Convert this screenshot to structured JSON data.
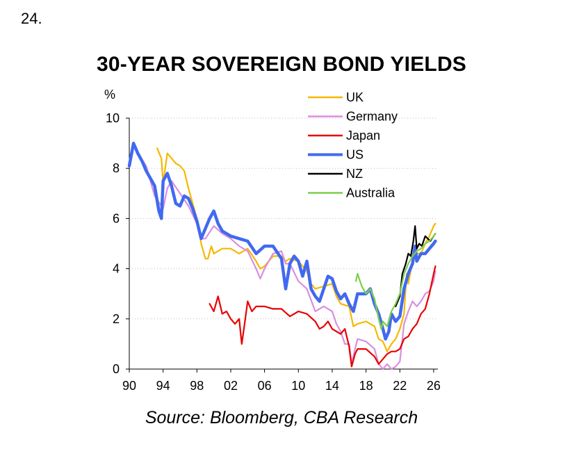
{
  "page_number": "24.",
  "source": "Source:  Bloomberg, CBA Research",
  "colors": {
    "UK": "#F5B800",
    "Germany": "#DA8EE0",
    "Japan": "#E80000",
    "US": "#4169F0",
    "NZ": "#000000",
    "Australia": "#7CCF4A"
  },
  "chart_data": {
    "type": "line",
    "title": "30-YEAR SOVEREIGN BOND YIELDS",
    "ylabel": "%",
    "xlabel": "",
    "xlim": [
      1990,
      2026.5
    ],
    "ylim": [
      0,
      10
    ],
    "x_tick_labels": [
      "90",
      "94",
      "98",
      "02",
      "06",
      "10",
      "14",
      "18",
      "22",
      "26"
    ],
    "x_tick_years": [
      1990,
      1994,
      1998,
      2002,
      2006,
      2010,
      2014,
      2018,
      2022,
      2026
    ],
    "y_tick_labels": [
      "0",
      "2",
      "4",
      "6",
      "8",
      "10"
    ],
    "y_tick_values": [
      0,
      2,
      4,
      6,
      8,
      10
    ],
    "grid": "horizontal dotted",
    "legend_position": "top-right",
    "series": [
      {
        "name": "UK",
        "x": [
          1993.3,
          1993.8,
          1994.0,
          1994.5,
          1995.0,
          1995.5,
          1996.0,
          1996.5,
          1997.0,
          1997.5,
          1998.0,
          1998.5,
          1999.0,
          1999.3,
          1999.7,
          2000.0,
          2001.0,
          2002.0,
          2003.0,
          2004.0,
          2005.0,
          2005.5,
          2006.0,
          2007.0,
          2008.0,
          2008.5,
          2009.0,
          2010.0,
          2011.0,
          2011.5,
          2012.0,
          2013.0,
          2014.0,
          2014.5,
          2015.0,
          2016.0,
          2016.5,
          2017.0,
          2018.0,
          2019.0,
          2019.5,
          2020.0,
          2020.5,
          2021.0,
          2021.5,
          2022.0,
          2022.5,
          2022.8,
          2023.0,
          2023.5,
          2024.0,
          2024.5,
          2025.0,
          2025.5,
          2026.0,
          2026.2
        ],
        "values": [
          8.8,
          8.4,
          7.4,
          8.6,
          8.4,
          8.2,
          8.1,
          7.9,
          7.2,
          6.6,
          6.0,
          5.0,
          4.4,
          4.4,
          4.9,
          4.6,
          4.8,
          4.8,
          4.6,
          4.8,
          4.3,
          4.0,
          4.1,
          4.5,
          4.5,
          4.3,
          4.4,
          4.3,
          3.9,
          3.4,
          3.2,
          3.3,
          3.4,
          2.9,
          2.6,
          2.5,
          1.7,
          1.8,
          1.9,
          1.7,
          1.2,
          1.1,
          0.7,
          1.0,
          1.2,
          1.6,
          2.2,
          3.8,
          3.4,
          4.3,
          4.6,
          4.6,
          5.0,
          5.3,
          5.7,
          5.8
        ]
      },
      {
        "name": "Germany",
        "x": [
          1990.5,
          1991.0,
          1992.0,
          1993.0,
          1994.0,
          1994.5,
          1995.0,
          1996.0,
          1997.0,
          1998.0,
          1998.5,
          1999.0,
          2000.0,
          2001.0,
          2002.0,
          2003.0,
          2004.0,
          2005.0,
          2005.5,
          2006.0,
          2007.0,
          2008.0,
          2008.5,
          2009.0,
          2010.0,
          2011.0,
          2012.0,
          2013.0,
          2014.0,
          2014.5,
          2015.0,
          2015.5,
          2016.0,
          2016.3,
          2016.7,
          2017.0,
          2018.0,
          2019.0,
          2019.5,
          2020.0,
          2020.5,
          2021.0,
          2021.5,
          2022.0,
          2022.5,
          2023.0,
          2023.5,
          2024.0,
          2024.5,
          2025.0,
          2025.5,
          2026.0,
          2026.2
        ],
        "values": [
          8.9,
          8.6,
          8.1,
          6.9,
          6.4,
          7.2,
          7.5,
          7.0,
          6.5,
          5.8,
          5.2,
          5.2,
          5.7,
          5.4,
          5.2,
          4.9,
          4.7,
          4.0,
          3.6,
          4.0,
          4.6,
          4.7,
          4.2,
          4.2,
          3.5,
          3.2,
          2.3,
          2.5,
          2.3,
          1.8,
          1.5,
          1.0,
          1.0,
          0.2,
          0.8,
          1.2,
          1.1,
          0.8,
          0.2,
          0.0,
          0.2,
          0.0,
          0.1,
          0.3,
          1.8,
          2.3,
          2.7,
          2.5,
          2.7,
          3.0,
          3.1,
          3.5,
          3.9
        ]
      },
      {
        "name": "Japan",
        "x": [
          1999.5,
          2000.0,
          2000.5,
          2001.0,
          2001.5,
          2002.0,
          2002.5,
          2003.0,
          2003.3,
          2003.6,
          2004.0,
          2004.5,
          2005.0,
          2006.0,
          2007.0,
          2008.0,
          2009.0,
          2010.0,
          2011.0,
          2012.0,
          2012.5,
          2013.0,
          2013.5,
          2014.0,
          2015.0,
          2015.5,
          2016.0,
          2016.3,
          2016.7,
          2017.0,
          2018.0,
          2019.0,
          2019.5,
          2020.0,
          2020.5,
          2021.0,
          2021.5,
          2022.0,
          2022.5,
          2023.0,
          2023.5,
          2024.0,
          2024.5,
          2025.0,
          2025.5,
          2026.0,
          2026.2
        ],
        "values": [
          2.6,
          2.3,
          2.9,
          2.2,
          2.3,
          2.0,
          1.8,
          2.0,
          1.0,
          1.7,
          2.7,
          2.3,
          2.5,
          2.5,
          2.4,
          2.4,
          2.1,
          2.3,
          2.2,
          1.9,
          1.6,
          1.7,
          1.9,
          1.6,
          1.4,
          1.6,
          0.9,
          0.1,
          0.6,
          0.8,
          0.8,
          0.5,
          0.2,
          0.4,
          0.6,
          0.7,
          0.7,
          0.8,
          1.2,
          1.3,
          1.6,
          1.8,
          2.2,
          2.4,
          3.0,
          3.8,
          4.1
        ]
      },
      {
        "name": "US",
        "x": [
          1990.0,
          1990.5,
          1991.0,
          1991.5,
          1992.0,
          1992.5,
          1993.0,
          1993.5,
          1993.8,
          1994.0,
          1994.5,
          1995.0,
          1995.5,
          1996.0,
          1996.5,
          1997.0,
          1997.5,
          1998.0,
          1998.5,
          1999.0,
          1999.5,
          2000.0,
          2000.5,
          2001.0,
          2002.0,
          2003.0,
          2004.0,
          2005.0,
          2006.0,
          2007.0,
          2008.0,
          2008.5,
          2009.0,
          2009.5,
          2010.0,
          2010.5,
          2011.0,
          2011.5,
          2012.0,
          2012.5,
          2013.0,
          2013.5,
          2014.0,
          2014.5,
          2015.0,
          2015.5,
          2016.0,
          2016.5,
          2017.0,
          2018.0,
          2018.5,
          2019.0,
          2019.5,
          2020.0,
          2020.3,
          2020.7,
          2021.0,
          2021.5,
          2022.0,
          2022.5,
          2023.0,
          2023.5,
          2023.8,
          2024.0,
          2024.5,
          2025.0,
          2025.5,
          2026.0,
          2026.2
        ],
        "values": [
          8.1,
          9.0,
          8.6,
          8.3,
          7.9,
          7.6,
          7.3,
          6.3,
          6.0,
          7.5,
          7.8,
          7.3,
          6.6,
          6.5,
          6.9,
          6.8,
          6.4,
          5.9,
          5.2,
          5.6,
          6.0,
          6.3,
          5.8,
          5.5,
          5.3,
          5.2,
          5.1,
          4.6,
          4.9,
          4.9,
          4.4,
          3.2,
          4.2,
          4.5,
          4.3,
          3.7,
          4.3,
          3.2,
          2.9,
          2.7,
          3.2,
          3.7,
          3.6,
          3.1,
          2.8,
          3.0,
          2.6,
          2.3,
          3.0,
          3.0,
          3.2,
          2.6,
          2.2,
          1.6,
          1.2,
          1.5,
          2.2,
          1.9,
          2.1,
          3.2,
          3.8,
          4.2,
          4.9,
          4.3,
          4.6,
          4.6,
          4.8,
          5.0,
          5.1
        ]
      },
      {
        "name": "NZ",
        "x": [
          2021.5,
          2022.0,
          2022.3,
          2022.7,
          2023.0,
          2023.3,
          2023.6,
          2023.8,
          2024.0,
          2024.3,
          2024.6,
          2025.0,
          2025.3,
          2025.6,
          2026.0,
          2026.2
        ],
        "values": [
          2.5,
          2.9,
          3.8,
          4.2,
          4.6,
          4.5,
          5.1,
          5.7,
          4.8,
          5.0,
          4.9,
          5.3,
          5.2,
          5.1,
          5.3,
          5.4
        ]
      },
      {
        "name": "Australia",
        "x": [
          2016.8,
          2017.0,
          2017.5,
          2018.0,
          2018.5,
          2019.0,
          2019.5,
          2019.8,
          2020.0,
          2020.5,
          2021.0,
          2021.5,
          2022.0,
          2022.5,
          2023.0,
          2023.5,
          2024.0,
          2024.5,
          2025.0,
          2025.5,
          2026.0,
          2026.2
        ],
        "values": [
          3.5,
          3.8,
          3.3,
          3.0,
          3.2,
          2.8,
          2.0,
          1.6,
          1.9,
          1.7,
          2.3,
          2.6,
          3.0,
          3.8,
          4.2,
          4.5,
          4.7,
          4.8,
          5.0,
          5.1,
          5.3,
          5.4
        ]
      }
    ]
  }
}
